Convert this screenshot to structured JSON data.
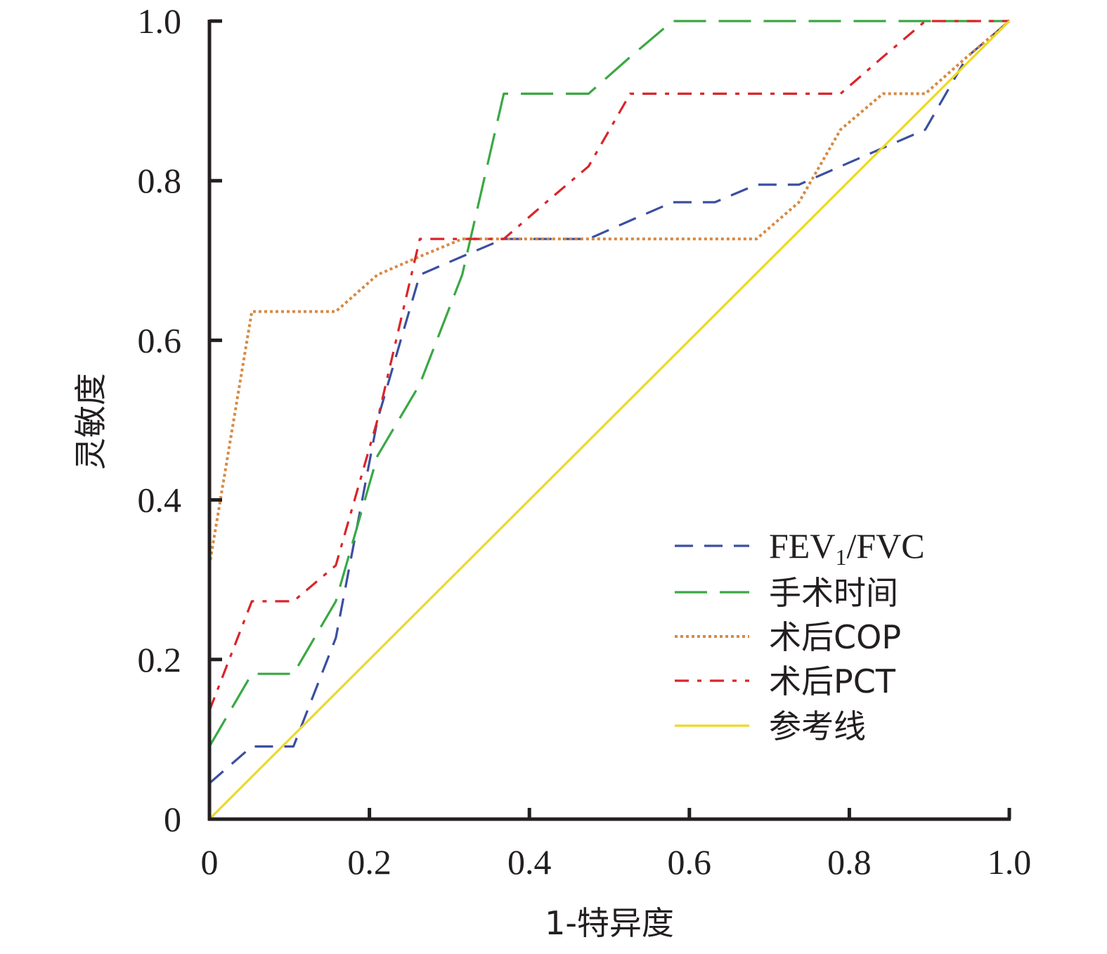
{
  "chart_data": {
    "type": "line",
    "title": "",
    "xlabel": "1-特异度",
    "ylabel": "灵敏度",
    "xlim": [
      0,
      1
    ],
    "ylim": [
      0,
      1
    ],
    "x_ticks": [
      "0",
      "0.2",
      "0.4",
      "0.6",
      "0.8",
      "1.0"
    ],
    "y_ticks": [
      "0",
      "0.2",
      "0.4",
      "0.6",
      "0.8",
      "1.0"
    ],
    "grid": false,
    "legend_position": "bottom-right",
    "series": [
      {
        "name": "FEV1/FVC",
        "name_main": "FEV",
        "name_sub": "1",
        "name_tail": "/FVC",
        "color": "#3b4fa0",
        "style": "dashed",
        "points": [
          [
            0,
            0.045
          ],
          [
            0.053,
            0.091
          ],
          [
            0.105,
            0.091
          ],
          [
            0.158,
            0.227
          ],
          [
            0.21,
            0.5
          ],
          [
            0.263,
            0.682
          ],
          [
            0.316,
            0.705
          ],
          [
            0.368,
            0.727
          ],
          [
            0.421,
            0.727
          ],
          [
            0.474,
            0.727
          ],
          [
            0.526,
            0.75
          ],
          [
            0.579,
            0.773
          ],
          [
            0.632,
            0.773
          ],
          [
            0.684,
            0.795
          ],
          [
            0.737,
            0.795
          ],
          [
            0.789,
            0.818
          ],
          [
            0.842,
            0.841
          ],
          [
            0.895,
            0.864
          ],
          [
            0.947,
            0.955
          ],
          [
            1.0,
            1.0
          ]
        ]
      },
      {
        "name": "手术时间",
        "color": "#3aa843",
        "style": "longdash",
        "points": [
          [
            0,
            0.091
          ],
          [
            0.053,
            0.182
          ],
          [
            0.105,
            0.182
          ],
          [
            0.158,
            0.273
          ],
          [
            0.21,
            0.455
          ],
          [
            0.263,
            0.545
          ],
          [
            0.316,
            0.682
          ],
          [
            0.368,
            0.909
          ],
          [
            0.421,
            0.909
          ],
          [
            0.474,
            0.909
          ],
          [
            0.526,
            0.955
          ],
          [
            0.579,
            1.0
          ],
          [
            0.632,
            1.0
          ],
          [
            0.684,
            1.0
          ],
          [
            0.737,
            1.0
          ],
          [
            0.789,
            1.0
          ],
          [
            0.842,
            1.0
          ],
          [
            0.895,
            1.0
          ],
          [
            0.947,
            1.0
          ],
          [
            1.0,
            1.0
          ]
        ]
      },
      {
        "name": "术后COP",
        "color": "#d68a45",
        "style": "dotted",
        "points": [
          [
            0,
            0.318
          ],
          [
            0.053,
            0.636
          ],
          [
            0.105,
            0.636
          ],
          [
            0.158,
            0.636
          ],
          [
            0.21,
            0.682
          ],
          [
            0.263,
            0.705
          ],
          [
            0.316,
            0.727
          ],
          [
            0.368,
            0.727
          ],
          [
            0.421,
            0.727
          ],
          [
            0.474,
            0.727
          ],
          [
            0.526,
            0.727
          ],
          [
            0.579,
            0.727
          ],
          [
            0.632,
            0.727
          ],
          [
            0.684,
            0.727
          ],
          [
            0.737,
            0.773
          ],
          [
            0.789,
            0.864
          ],
          [
            0.842,
            0.909
          ],
          [
            0.895,
            0.909
          ],
          [
            0.947,
            0.955
          ],
          [
            1.0,
            1.0
          ]
        ]
      },
      {
        "name": "术后PCT",
        "color": "#d9252a",
        "style": "dashdot",
        "points": [
          [
            0,
            0.136
          ],
          [
            0.053,
            0.273
          ],
          [
            0.105,
            0.273
          ],
          [
            0.158,
            0.318
          ],
          [
            0.21,
            0.5
          ],
          [
            0.263,
            0.727
          ],
          [
            0.316,
            0.727
          ],
          [
            0.368,
            0.727
          ],
          [
            0.421,
            0.773
          ],
          [
            0.474,
            0.818
          ],
          [
            0.526,
            0.909
          ],
          [
            0.579,
            0.909
          ],
          [
            0.632,
            0.909
          ],
          [
            0.684,
            0.909
          ],
          [
            0.737,
            0.909
          ],
          [
            0.789,
            0.909
          ],
          [
            0.842,
            0.955
          ],
          [
            0.895,
            1.0
          ],
          [
            0.947,
            1.0
          ],
          [
            1.0,
            1.0
          ]
        ]
      },
      {
        "name": "参考线",
        "color": "#ecd927",
        "style": "solid",
        "points": [
          [
            0,
            0
          ],
          [
            1,
            1
          ]
        ]
      }
    ]
  }
}
